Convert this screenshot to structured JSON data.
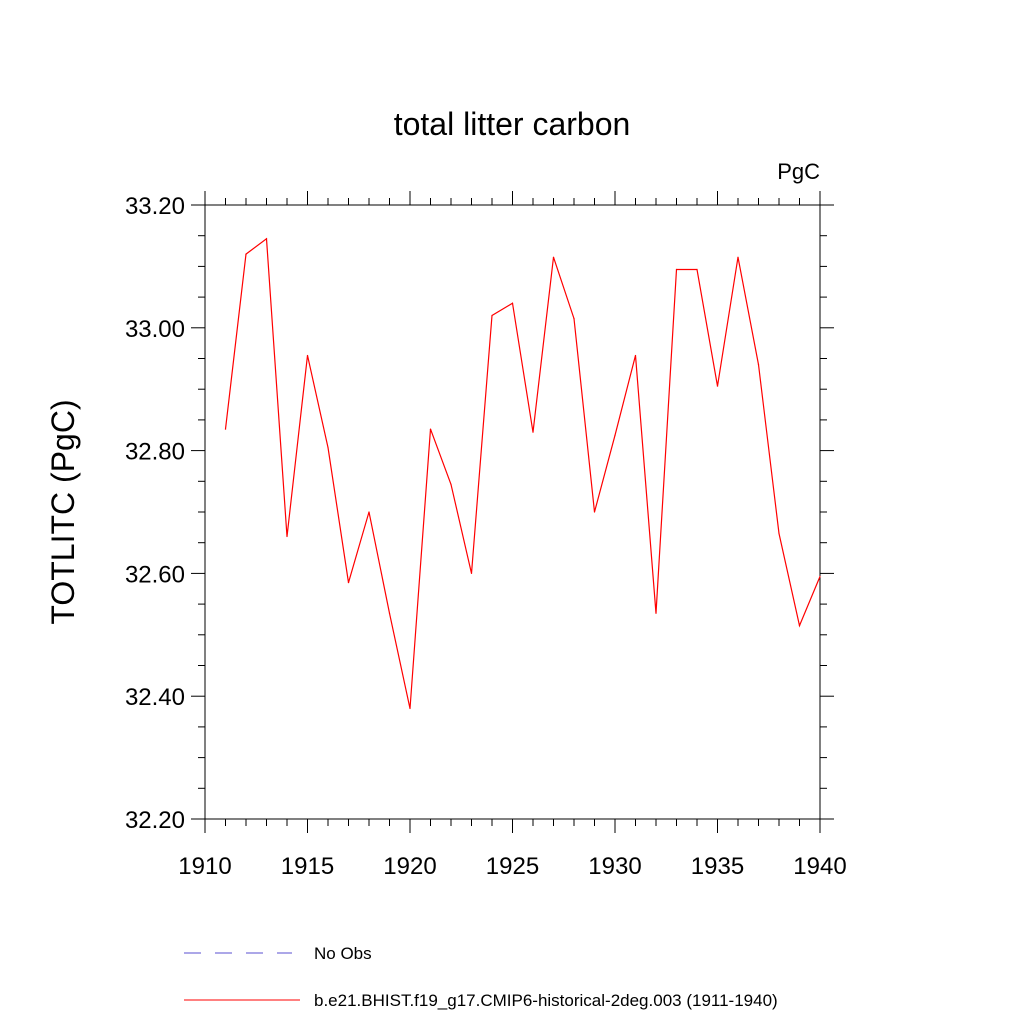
{
  "chart_data": {
    "type": "line",
    "title": "total litter carbon",
    "units_label": "PgC",
    "ylabel": "TOTLITC  (PgC)",
    "xlabel": "",
    "xlim": [
      1910,
      1940
    ],
    "ylim": [
      32.2,
      33.2
    ],
    "x_ticks": [
      1910,
      1915,
      1920,
      1925,
      1930,
      1935,
      1940
    ],
    "x_tick_labels": [
      "1910",
      "1915",
      "1920",
      "1925",
      "1930",
      "1935",
      "1940"
    ],
    "y_ticks": [
      32.2,
      32.4,
      32.6,
      32.8,
      33.0,
      33.2
    ],
    "y_tick_labels": [
      "32.20",
      "32.40",
      "32.60",
      "32.80",
      "33.00",
      "33.20"
    ],
    "grid": false,
    "legend_position": "bottom",
    "legend": [
      {
        "label": "No Obs",
        "color": "#5a4fd0",
        "style": "dashed"
      },
      {
        "label": "b.e21.BHIST.f19_g17.CMIP6-historical-2deg.003 (1911-1940)",
        "color": "#ff0000",
        "style": "solid"
      }
    ],
    "series": [
      {
        "name": "b.e21.BHIST.f19_g17.CMIP6-historical-2deg.003 (1911-1940)",
        "color": "#ff0000",
        "x": [
          1911,
          1912,
          1913,
          1914,
          1915,
          1916,
          1917,
          1918,
          1919,
          1920,
          1921,
          1922,
          1923,
          1924,
          1925,
          1926,
          1927,
          1928,
          1929,
          1930,
          1931,
          1932,
          1933,
          1934,
          1935,
          1936,
          1937,
          1938,
          1939,
          1940
        ],
        "values": [
          32.835,
          33.12,
          33.145,
          32.66,
          32.955,
          32.805,
          32.585,
          32.7,
          32.535,
          32.38,
          32.835,
          32.745,
          32.6,
          33.02,
          33.04,
          32.83,
          33.115,
          33.015,
          32.7,
          32.825,
          32.955,
          32.535,
          33.095,
          33.095,
          32.905,
          33.115,
          32.94,
          32.665,
          32.515,
          32.595
        ]
      }
    ]
  }
}
